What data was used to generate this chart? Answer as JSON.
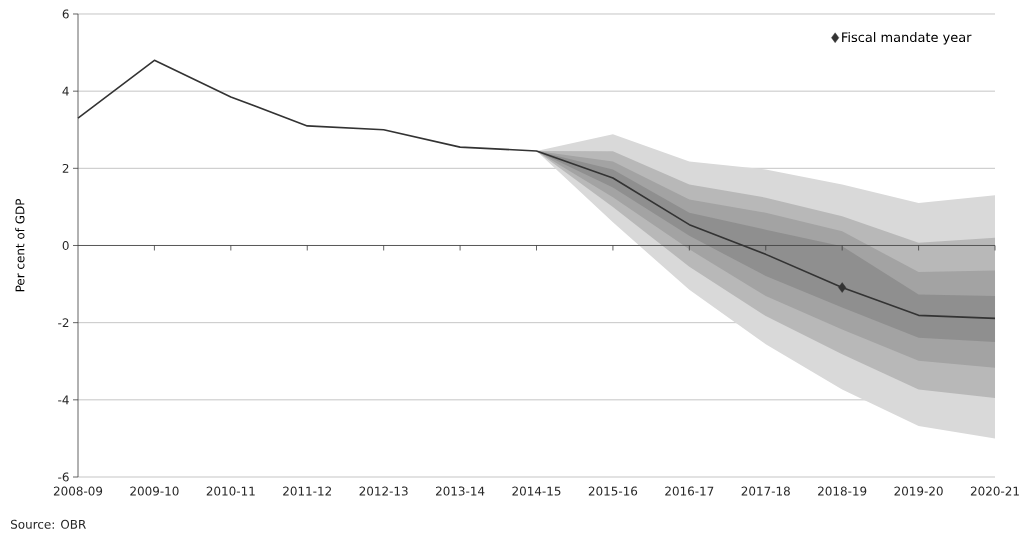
{
  "chart_data": {
    "type": "line",
    "ylabel": "Per cent of GDP",
    "categories": [
      "2008-09",
      "2009-10",
      "2010-11",
      "2011-12",
      "2012-13",
      "2013-14",
      "2014-15",
      "2015-16",
      "2016-17",
      "2017-18",
      "2018-19",
      "2019-20",
      "2020-21"
    ],
    "ylim": [
      -6,
      6
    ],
    "yticks": [
      -6,
      -4,
      -2,
      0,
      2,
      4,
      6
    ],
    "grid": "y",
    "legend": "top right",
    "line_style": "solid",
    "series": [
      {
        "type": "area",
        "color": "#d9d9d9",
        "values": [
          null,
          null,
          null,
          null,
          null,
          null,
          null,
          null,
          null,
          null,
          null,
          null,
          null
        ],
        "lower": [
          null,
          null,
          null,
          null,
          null,
          null,
          2.45,
          0.6,
          -1.15,
          -2.56,
          -3.73,
          -4.68,
          -5.0
        ],
        "upper": [
          null,
          null,
          null,
          null,
          null,
          null,
          2.45,
          2.88,
          2.18,
          1.97,
          1.58,
          1.1,
          1.3
        ]
      },
      {
        "type": "area",
        "color": "#b8b8b8",
        "values": [
          null,
          null,
          null,
          null,
          null,
          null,
          null,
          null,
          null,
          null,
          null,
          null,
          null
        ],
        "lower": [
          null,
          null,
          null,
          null,
          null,
          null,
          2.45,
          1.0,
          -0.55,
          -1.83,
          -2.82,
          -3.73,
          -3.95
        ],
        "upper": [
          null,
          null,
          null,
          null,
          null,
          null,
          2.45,
          2.44,
          1.58,
          1.24,
          0.76,
          0.07,
          0.2
        ]
      },
      {
        "type": "area",
        "color": "#a3a3a3",
        "values": [
          null,
          null,
          null,
          null,
          null,
          null,
          null,
          null,
          null,
          null,
          null,
          null,
          null
        ],
        "lower": [
          null,
          null,
          null,
          null,
          null,
          null,
          2.45,
          1.25,
          -0.1,
          -1.31,
          -2.18,
          -2.99,
          -3.17
        ],
        "upper": [
          null,
          null,
          null,
          null,
          null,
          null,
          2.45,
          2.18,
          1.19,
          0.85,
          0.37,
          -0.69,
          -0.65
        ]
      },
      {
        "type": "area",
        "color": "#8f8f8f",
        "values": [
          null,
          null,
          null,
          null,
          null,
          null,
          null,
          null,
          null,
          null,
          null,
          null,
          null
        ],
        "lower": [
          null,
          null,
          null,
          null,
          null,
          null,
          2.45,
          1.5,
          0.25,
          -0.79,
          -1.61,
          -2.39,
          -2.5
        ],
        "upper": [
          null,
          null,
          null,
          null,
          null,
          null,
          2.45,
          1.97,
          0.85,
          0.41,
          -0.02,
          -1.27,
          -1.31
        ]
      },
      {
        "type": "line",
        "color": "#333333",
        "values": [
          3.3,
          4.8,
          3.85,
          3.1,
          3.0,
          2.55,
          2.45,
          1.75,
          0.54,
          -0.23,
          -1.09,
          -1.81,
          -1.89
        ]
      },
      {
        "type": "scatter",
        "name": "Fiscal mandate year",
        "color": "#333333",
        "marker": "diamond",
        "x": [
          "2018-19"
        ],
        "values": [
          -1.09
        ]
      }
    ],
    "annotations": [
      "Source: OBR"
    ]
  }
}
